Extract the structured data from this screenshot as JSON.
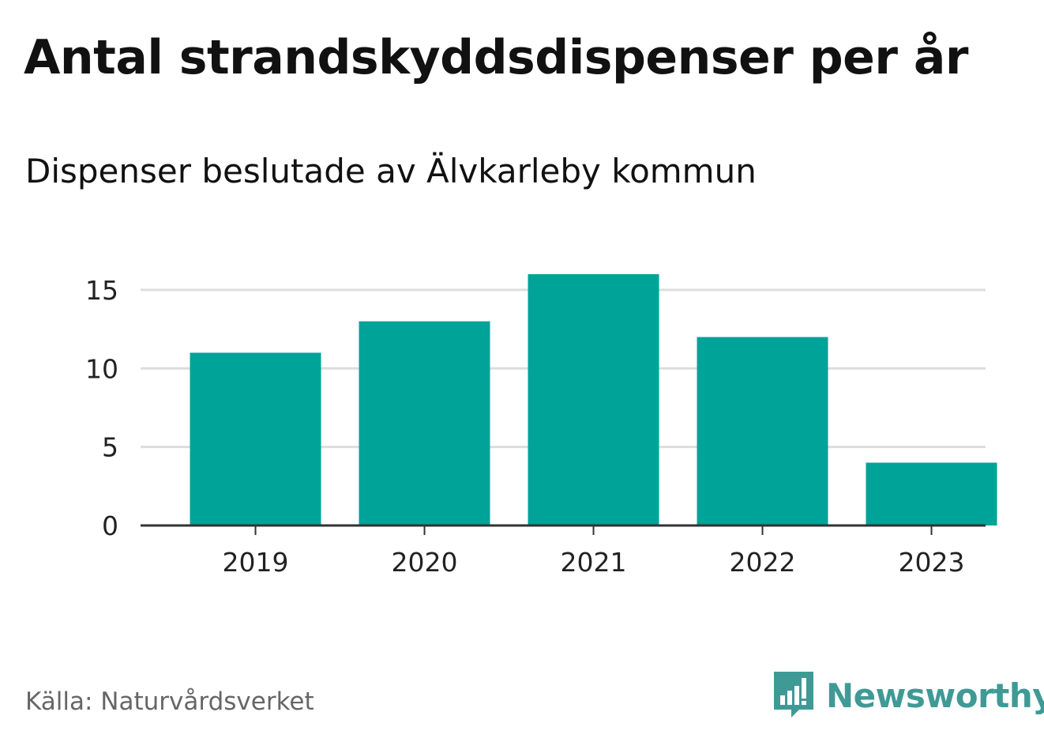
{
  "header": {
    "title": "Antal strandskyddsdispenser per år",
    "subtitle": "Dispenser beslutade av Älvkarleby kommun"
  },
  "chart_data": {
    "type": "bar",
    "title": "Antal strandskyddsdispenser per år",
    "subtitle": "Dispenser beslutade av Älvkarleby kommun",
    "categories": [
      "2019",
      "2020",
      "2021",
      "2022",
      "2023"
    ],
    "values": [
      11,
      13,
      16,
      12,
      4
    ],
    "xlabel": "",
    "ylabel": "",
    "ylim": [
      0,
      16
    ],
    "yticks": [
      0,
      5,
      10,
      15
    ],
    "grid": true,
    "bar_color": "#00a398",
    "grid_color": "#dddddd",
    "axis_color": "#333333"
  },
  "footer": {
    "source": "Källa: Naturvårdsverket",
    "brand_name": "Newsworthy",
    "brand_icon": "newsworthy-logo-icon",
    "brand_color": "#3f9a96"
  }
}
